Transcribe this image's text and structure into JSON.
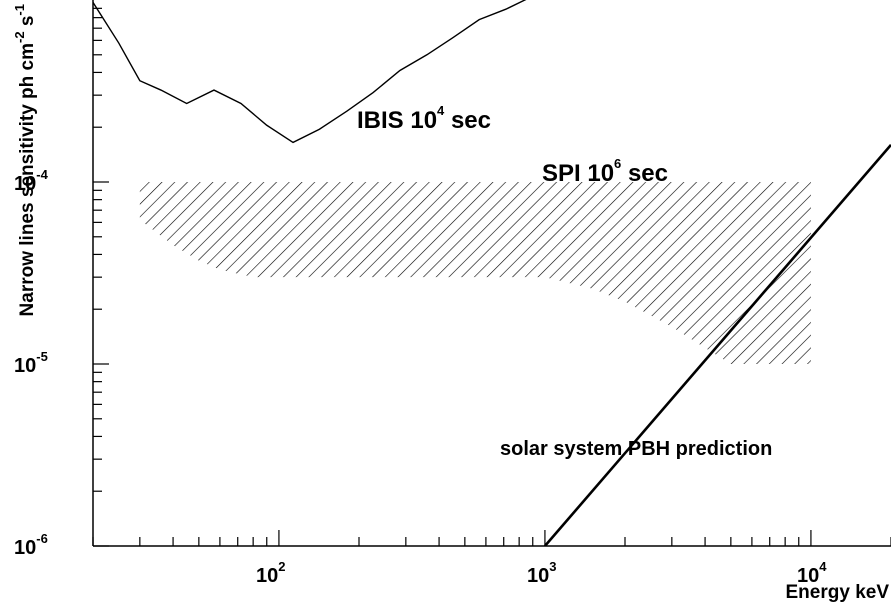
{
  "chart_data": {
    "type": "line",
    "x_scale": "log",
    "y_scale": "log",
    "xlim": [
      20,
      20000
    ],
    "ylim": [
      1e-06,
      0.001
    ],
    "xlabel": "Energy keV",
    "ylabel": "Narrow lines sensitivity ph cm-2 s-1",
    "ylabel_parts": {
      "base": "Narrow lines sensitivity ph cm",
      "exp1": "-2",
      "mid": " s",
      "exp2": "-1"
    },
    "grid": false,
    "x_ticks": [
      {
        "base": "10",
        "exp": "2",
        "value": 100
      },
      {
        "base": "10",
        "exp": "3",
        "value": 1000
      },
      {
        "base": "10",
        "exp": "4",
        "value": 10000
      }
    ],
    "y_ticks": [
      {
        "base": "10",
        "exp": "-6",
        "value": 1e-06
      },
      {
        "base": "10",
        "exp": "-5",
        "value": 1e-05
      },
      {
        "base": "10",
        "exp": "-4",
        "value": 0.0001
      }
    ],
    "series": [
      {
        "name": "IBIS 10^4 sec",
        "style": "line",
        "color": "#000000",
        "x": [
          20,
          25,
          30,
          36,
          45,
          57,
          72,
          90,
          113,
          142,
          180,
          226,
          285,
          360,
          450,
          566,
          713,
          900
        ],
        "y": [
          0.00097,
          0.00058,
          0.00036,
          0.00032,
          0.00027,
          0.00032,
          0.00027,
          0.000205,
          0.000165,
          0.000195,
          0.000245,
          0.00031,
          0.00041,
          0.0005,
          0.00062,
          0.00078,
          0.00089,
          0.00105
        ]
      },
      {
        "name": "SPI 10^6 sec",
        "style": "hatched-band",
        "color": "#000000",
        "x": [
          30,
          40,
          50,
          60,
          80,
          1000,
          1500,
          2000,
          3000,
          5000,
          10000
        ],
        "y_upper": [
          0.0001,
          0.0001,
          0.0001,
          0.0001,
          0.0001,
          0.0001,
          0.0001,
          0.0001,
          0.0001,
          0.0001,
          0.0001
        ],
        "y_lower": [
          6.2e-05,
          4.5e-05,
          3.7e-05,
          3.3e-05,
          3e-05,
          3e-05,
          2.6e-05,
          2.2e-05,
          1.6e-05,
          1e-05,
          1e-05
        ]
      },
      {
        "name": "solar system PBH prediction",
        "style": "line",
        "color": "#000000",
        "x": [
          1000,
          20000
        ],
        "y": [
          1e-06,
          0.00016
        ]
      }
    ],
    "annotations": [
      {
        "name": "ibis-label",
        "base": "IBIS 10",
        "exp": "4",
        "tail": " sec"
      },
      {
        "name": "spi-label",
        "base": "SPI 10",
        "exp": "6",
        "tail": " sec"
      },
      {
        "name": "pbh-label",
        "text": "solar system PBH prediction"
      }
    ]
  }
}
